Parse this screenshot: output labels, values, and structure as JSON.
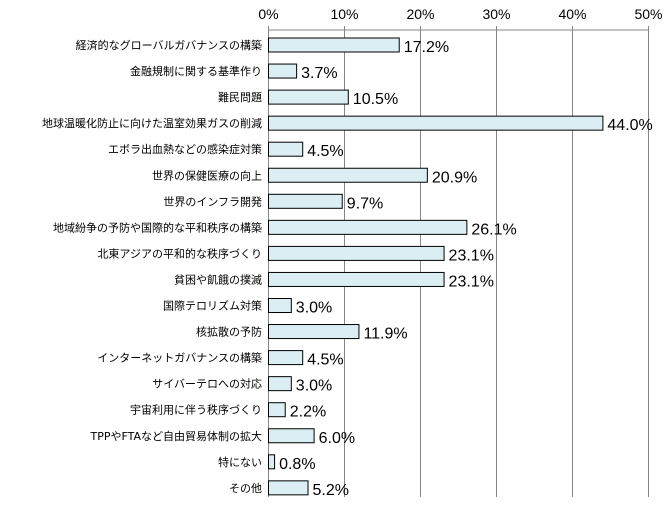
{
  "chart_data": {
    "type": "bar",
    "orientation": "horizontal",
    "categories": [
      "経済的なグローバルガバナンスの構築",
      "金融規制に関する基準作り",
      "難民問題",
      "地球温暖化防止に向けた温室効果ガスの削減",
      "エボラ出血熱などの感染症対策",
      "世界の保健医療の向上",
      "世界のインフラ開発",
      "地域紛争の予防や国際的な平和秩序の構築",
      "北東アジアの平和的な秩序づくり",
      "貧困や飢餓の撲滅",
      "国際テロリズム対策",
      "核拡散の予防",
      "インターネットガバナンスの構築",
      "サイバーテロへの対応",
      "宇宙利用に伴う秩序づくり",
      "TPPやFTAなど自由貿易体制の拡大",
      "特にない",
      "その他"
    ],
    "values": [
      17.2,
      3.7,
      10.5,
      44.0,
      4.5,
      20.9,
      9.7,
      26.1,
      23.1,
      23.1,
      3.0,
      11.9,
      4.5,
      3.0,
      2.2,
      6.0,
      0.8,
      5.2
    ],
    "value_labels": [
      "17.2%",
      "3.7%",
      "10.5%",
      "44.0%",
      "4.5%",
      "20.9%",
      "9.7%",
      "26.1%",
      "23.1%",
      "23.1%",
      "3.0%",
      "11.9%",
      "4.5%",
      "3.0%",
      "2.2%",
      "6.0%",
      "0.8%",
      "5.2%"
    ],
    "xlim": [
      0,
      50
    ],
    "xticks": [
      0,
      10,
      20,
      30,
      40,
      50
    ],
    "xtick_labels": [
      "0%",
      "10%",
      "20%",
      "30%",
      "40%",
      "50%"
    ],
    "x_axis_position": "top",
    "grid": true,
    "bar_color": "#DAEEF3",
    "bar_edge_color": "#000000",
    "grid_color": "#868686"
  }
}
